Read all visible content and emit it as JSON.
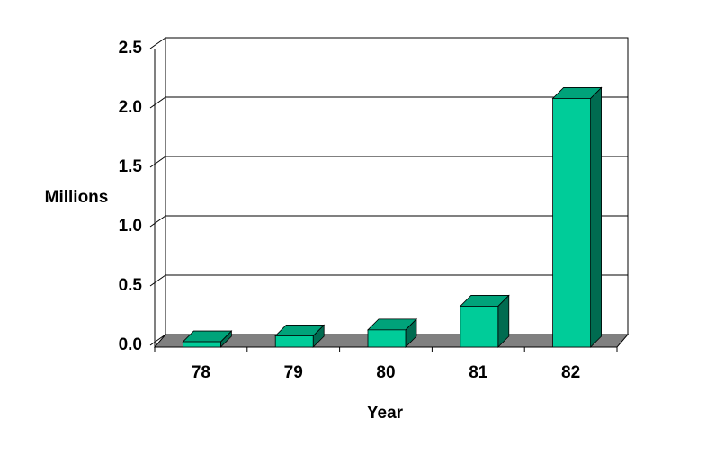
{
  "chart_data": {
    "type": "bar3d",
    "x_label": "Year",
    "y_label": "Millions",
    "categories": [
      "78",
      "79",
      "80",
      "81",
      "82"
    ],
    "values": [
      0.03,
      0.08,
      0.13,
      0.33,
      2.08
    ],
    "color": "#00cc99",
    "ylim": [
      0,
      2.5
    ],
    "yticks": [
      {
        "value": 0,
        "label": "0.0"
      },
      0.5,
      {
        "value": 1,
        "label": "1.0"
      },
      1.5,
      {
        "value": 2,
        "label": "2.0"
      },
      2.5
    ],
    "grid": true
  }
}
